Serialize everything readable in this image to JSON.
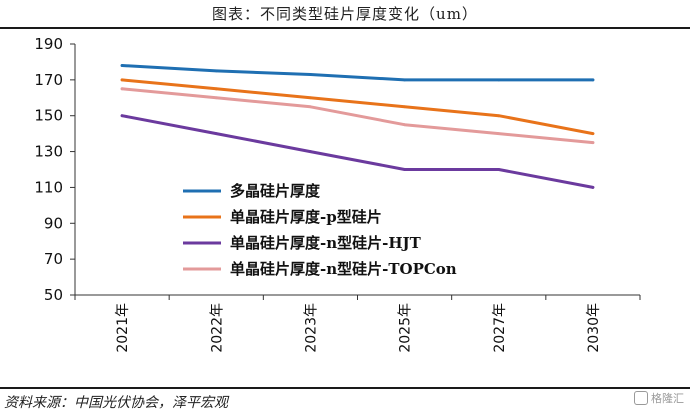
{
  "header": {
    "title": "图表：不同类型硅片厚度变化（um）"
  },
  "footer": {
    "source": "资料来源：中国光伏协会，泽平宏观",
    "watermark": "格隆汇"
  },
  "chart_data": {
    "type": "line",
    "title": "图表：不同类型硅片厚度变化（um）",
    "categories": [
      "2021年",
      "2022年",
      "2023年",
      "2025年",
      "2027年",
      "2030年"
    ],
    "ylim": [
      50,
      190
    ],
    "yticks": [
      50,
      70,
      90,
      110,
      130,
      150,
      170,
      190
    ],
    "grid": false,
    "legend_position": "center-left",
    "series": [
      {
        "name": "多晶硅片厚度",
        "color": "#1f6fb2",
        "values": [
          178,
          175,
          173,
          170,
          170,
          170
        ]
      },
      {
        "name": "单晶硅片厚度-p型硅片",
        "color": "#e8731a",
        "values": [
          170,
          165,
          160,
          155,
          150,
          140
        ]
      },
      {
        "name": "单晶硅片厚度-n型硅片-HJT",
        "color": "#6b3a9e",
        "values": [
          150,
          140,
          130,
          120,
          120,
          110
        ]
      },
      {
        "name": "单晶硅片厚度-n型硅片-TOPCon",
        "color": "#e39a9a",
        "values": [
          165,
          160,
          155,
          145,
          140,
          135
        ]
      }
    ]
  }
}
